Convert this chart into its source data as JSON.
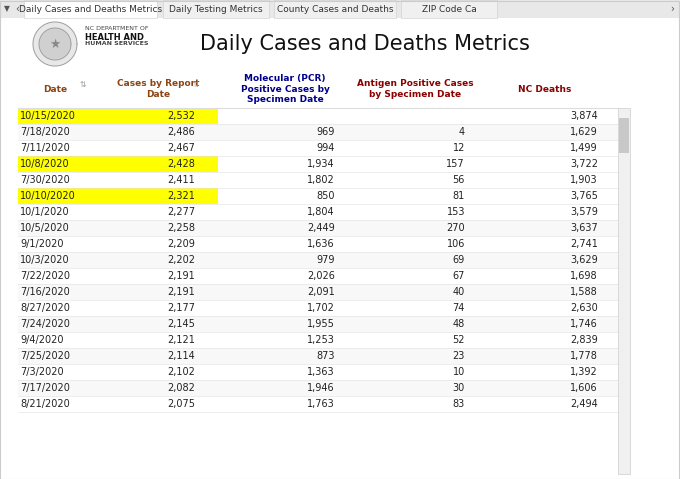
{
  "tabs": [
    "Daily Cases and Deaths Metrics",
    "Daily Testing Metrics",
    "County Cases and Deaths",
    "ZIP Code Ca"
  ],
  "title": "Daily Cases and Deaths Metrics",
  "col_headers": [
    "Date",
    "Cases by Report\nDate",
    "Molecular (PCR)\nPositive Cases by\nSpecimen Date",
    "Antigen Positive Cases\nby Specimen Date",
    "NC Deaths"
  ],
  "col_header_colors": [
    "#8B4513",
    "#8B4513",
    "#00008B",
    "#8B0000",
    "#8B0000"
  ],
  "rows": [
    {
      "date": "10/15/2020",
      "cases": "2,532",
      "molecular": "",
      "antigen": "",
      "deaths": "3,874",
      "hl": true
    },
    {
      "date": "7/18/2020",
      "cases": "2,486",
      "molecular": "969",
      "antigen": "4",
      "deaths": "1,629",
      "hl": false
    },
    {
      "date": "7/11/2020",
      "cases": "2,467",
      "molecular": "994",
      "antigen": "12",
      "deaths": "1,499",
      "hl": false
    },
    {
      "date": "10/8/2020",
      "cases": "2,428",
      "molecular": "1,934",
      "antigen": "157",
      "deaths": "3,722",
      "hl": true
    },
    {
      "date": "7/30/2020",
      "cases": "2,411",
      "molecular": "1,802",
      "antigen": "56",
      "deaths": "1,903",
      "hl": false
    },
    {
      "date": "10/10/2020",
      "cases": "2,321",
      "molecular": "850",
      "antigen": "81",
      "deaths": "3,765",
      "hl": true
    },
    {
      "date": "10/1/2020",
      "cases": "2,277",
      "molecular": "1,804",
      "antigen": "153",
      "deaths": "3,579",
      "hl": false
    },
    {
      "date": "10/5/2020",
      "cases": "2,258",
      "molecular": "2,449",
      "antigen": "270",
      "deaths": "3,637",
      "hl": false
    },
    {
      "date": "9/1/2020",
      "cases": "2,209",
      "molecular": "1,636",
      "antigen": "106",
      "deaths": "2,741",
      "hl": false
    },
    {
      "date": "10/3/2020",
      "cases": "2,202",
      "molecular": "979",
      "antigen": "69",
      "deaths": "3,629",
      "hl": false
    },
    {
      "date": "7/22/2020",
      "cases": "2,191",
      "molecular": "2,026",
      "antigen": "67",
      "deaths": "1,698",
      "hl": false
    },
    {
      "date": "7/16/2020",
      "cases": "2,191",
      "molecular": "2,091",
      "antigen": "40",
      "deaths": "1,588",
      "hl": false
    },
    {
      "date": "8/27/2020",
      "cases": "2,177",
      "molecular": "1,702",
      "antigen": "74",
      "deaths": "2,630",
      "hl": false
    },
    {
      "date": "7/24/2020",
      "cases": "2,145",
      "molecular": "1,955",
      "antigen": "48",
      "deaths": "1,746",
      "hl": false
    },
    {
      "date": "9/4/2020",
      "cases": "2,121",
      "molecular": "1,253",
      "antigen": "52",
      "deaths": "2,839",
      "hl": false
    },
    {
      "date": "7/25/2020",
      "cases": "2,114",
      "molecular": "873",
      "antigen": "23",
      "deaths": "1,778",
      "hl": false
    },
    {
      "date": "7/3/2020",
      "cases": "2,102",
      "molecular": "1,363",
      "antigen": "10",
      "deaths": "1,392",
      "hl": false
    },
    {
      "date": "7/17/2020",
      "cases": "2,082",
      "molecular": "1,946",
      "antigen": "30",
      "deaths": "1,606",
      "hl": false
    },
    {
      "date": "8/21/2020",
      "cases": "2,075",
      "molecular": "1,763",
      "antigen": "83",
      "deaths": "2,494",
      "hl": false
    }
  ],
  "bg_color": "#ffffff",
  "highlight_color": "#FFFF00",
  "tab_active_bg": "#ffffff",
  "tab_inactive_bg": "#f0f0f0",
  "tab_border": "#cccccc",
  "tab_bar_bg": "#e8e8e8",
  "header_bg": "#ffffff",
  "row_alt_bg": "#f8f8f8",
  "scrollbar_track": "#f0f0f0",
  "scrollbar_thumb": "#c8c8c8",
  "grid_line": "#e0e0e0",
  "text_dark": "#222222",
  "tab_fontsize": 6.5,
  "header_title_fontsize": 15,
  "col_header_fontsize": 6.5,
  "row_fontsize": 7.0,
  "nc_dept_fontsize": 4.5,
  "nc_name_fontsize": 6.0
}
